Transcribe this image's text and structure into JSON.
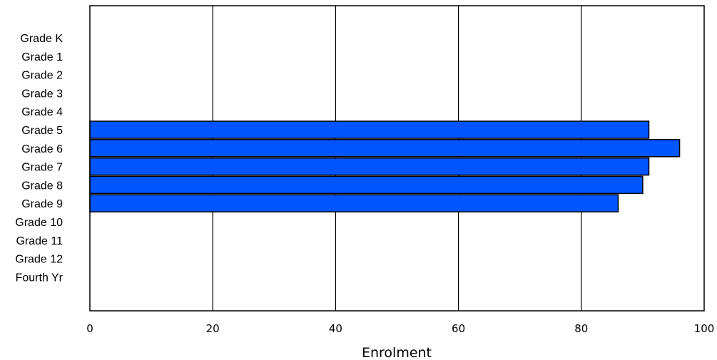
{
  "chart_data": {
    "type": "bar",
    "orientation": "horizontal",
    "categories": [
      "Grade K",
      "Grade 1",
      "Grade 2",
      "Grade 3",
      "Grade 4",
      "Grade 5",
      "Grade 6",
      "Grade 7",
      "Grade 8",
      "Grade 9",
      "Grade 10",
      "Grade 11",
      "Grade 12",
      "Fourth Yr"
    ],
    "values": [
      0,
      0,
      0,
      0,
      0,
      91,
      96,
      91,
      90,
      86,
      0,
      0,
      0,
      0
    ],
    "xlabel": "Enrolment",
    "xlim": [
      0,
      100
    ],
    "xticks": [
      "0",
      "20",
      "40",
      "60",
      "80",
      "100"
    ],
    "grid": "vertical",
    "bar_color": "#0055ff",
    "bar_edge_color": "#000000"
  }
}
